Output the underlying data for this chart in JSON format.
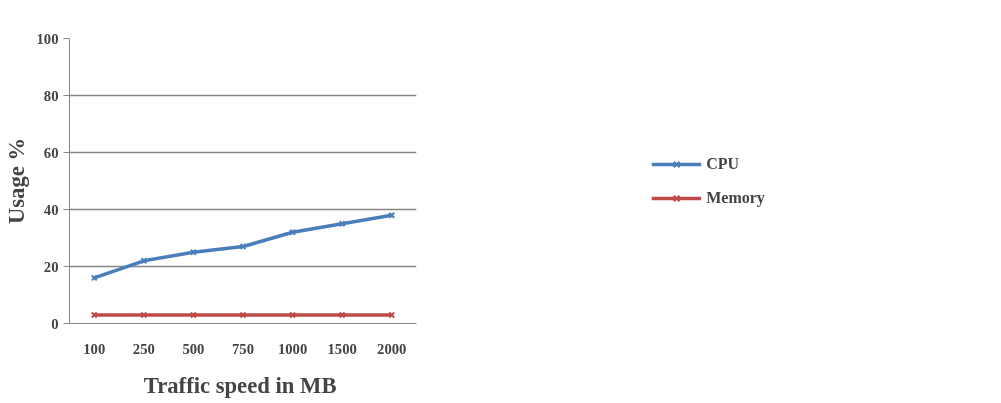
{
  "chart_data": {
    "type": "line",
    "xlabel": "Traffic speed  in MB",
    "ylabel": "Usage %",
    "categories": [
      "100",
      "250",
      "500",
      "750",
      "1000",
      "1500",
      "2000"
    ],
    "series": [
      {
        "name": "CPU",
        "color": "#4a7ebb",
        "values": [
          16,
          22,
          25,
          27,
          32,
          35,
          38
        ]
      },
      {
        "name": "Memory",
        "color": "#be4b48",
        "values": [
          3,
          3,
          3,
          3,
          3,
          3,
          3
        ]
      }
    ],
    "ylim": [
      0,
      100
    ],
    "yticks": [
      0,
      20,
      40,
      60,
      80,
      100
    ],
    "grid": "y",
    "legend": "right",
    "marker": "cross",
    "line_style": "solid"
  }
}
